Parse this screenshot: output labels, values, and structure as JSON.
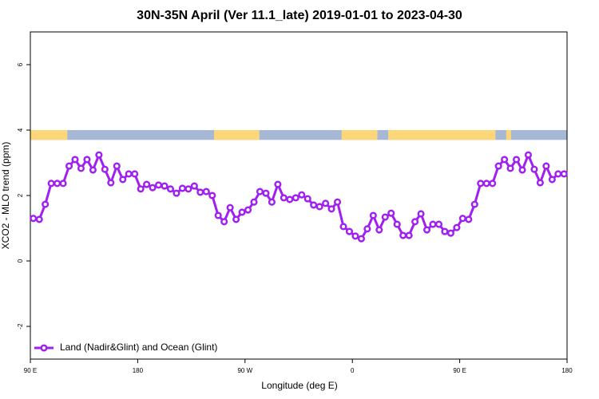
{
  "chart_data": {
    "type": "line",
    "title": "30N-35N April (Ver 11.1_late)   2019-01-01 to 2023-04-30",
    "x_label": "Longitude (deg E)",
    "y_label": "XCO2 - MLO trend (ppm)",
    "xlim": [
      90,
      540
    ],
    "ylim": [
      -3,
      7
    ],
    "xticks": [
      {
        "value": 90,
        "label": "90 E"
      },
      180,
      {
        "value": 270,
        "label": "90 W"
      },
      {
        "value": 360,
        "label": "0"
      },
      {
        "value": 450,
        "label": "90 E"
      },
      {
        "value": 540,
        "label": "180"
      }
    ],
    "yticks": [
      -2,
      0,
      2,
      4,
      6
    ],
    "legend": "bottomleft",
    "band_ylim": [
      3.7,
      4.0
    ],
    "band_ocean_color": "#a6b8d6",
    "band_land_color": "#fcd77a",
    "land_lon": [
      [
        90,
        121
      ],
      [
        244,
        282
      ],
      [
        351,
        381
      ],
      [
        390,
        480
      ],
      [
        489,
        493
      ]
    ],
    "x": [
      92.5,
      97.5,
      102.5,
      107.5,
      112.5,
      117.5,
      122.5,
      127.5,
      132.5,
      137.5,
      142.5,
      147.5,
      152.5,
      157.5,
      162.5,
      167.5,
      172.5,
      177.5,
      182.5,
      187.5,
      192.5,
      197.5,
      202.5,
      207.5,
      212.5,
      217.5,
      222.5,
      227.5,
      232.5,
      237.5,
      242.5,
      247.5,
      252.5,
      257.5,
      262.5,
      267.5,
      272.5,
      277.5,
      282.5,
      287.5,
      292.5,
      297.5,
      302.5,
      307.5,
      312.5,
      317.5,
      322.5,
      327.5,
      332.5,
      337.5,
      342.5,
      347.5,
      352.5,
      357.5,
      362.5,
      367.5,
      372.5,
      377.5,
      382.5,
      387.5,
      392.5,
      397.5,
      402.5,
      407.5,
      412.5,
      417.5,
      422.5,
      427.5,
      432.5,
      437.5,
      442.5,
      447.5,
      452.5,
      457.5,
      462.5,
      467.5,
      472.5,
      477.5,
      482.5,
      487.5,
      492.5,
      497.5,
      502.5,
      507.5,
      512.5,
      517.5,
      522.5,
      527.5,
      532.5,
      537.5
    ],
    "series": [
      {
        "name": "Land (Nadir&Glint) and Ocean (Glint)",
        "color": "#a020f0",
        "values": [
          1.3,
          1.27,
          1.73,
          2.37,
          2.37,
          2.37,
          2.9,
          3.1,
          2.83,
          3.1,
          2.78,
          3.24,
          2.8,
          2.39,
          2.9,
          2.49,
          2.66,
          2.66,
          2.2,
          2.34,
          2.24,
          2.32,
          2.29,
          2.2,
          2.07,
          2.22,
          2.2,
          2.29,
          2.1,
          2.12,
          2.0,
          1.39,
          1.2,
          1.63,
          1.27,
          1.49,
          1.56,
          1.8,
          2.12,
          2.07,
          1.8,
          2.34,
          1.93,
          1.88,
          1.93,
          2.02,
          1.9,
          1.71,
          1.66,
          1.76,
          1.59,
          1.8,
          1.05,
          0.9,
          0.76,
          0.68,
          0.98,
          1.39,
          0.95,
          1.34,
          1.46,
          1.12,
          0.78,
          0.78,
          1.2,
          1.44,
          0.95,
          1.12,
          1.12,
          0.9,
          0.85,
          1.02,
          1.3,
          1.27,
          1.73,
          2.37,
          2.37,
          2.37,
          2.9,
          3.1,
          2.83,
          3.1,
          2.78,
          3.24,
          2.8,
          2.39,
          2.9,
          2.49,
          2.66,
          2.66
        ]
      }
    ]
  }
}
